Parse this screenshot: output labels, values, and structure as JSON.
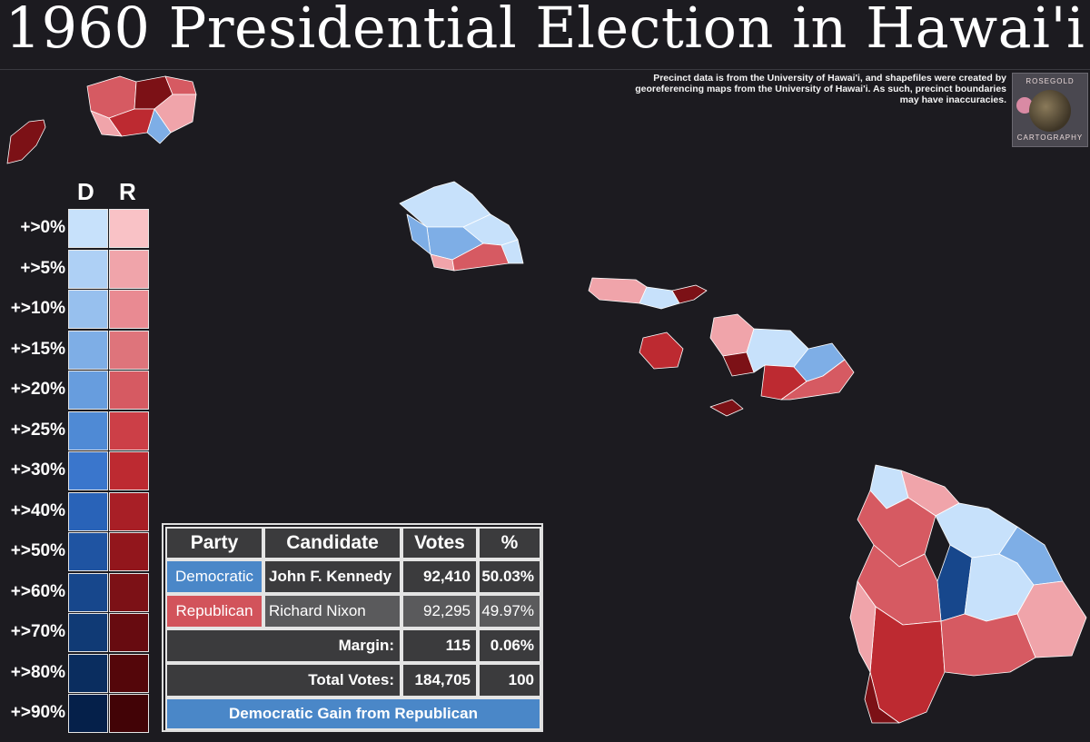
{
  "title": "1960 Presidential Election in Hawai'i",
  "source_note": "Precinct data is from the University of Hawai'i, and shapefiles were created by georeferencing maps from the University of Hawai'i. As such, precinct boundaries may have inaccuracies.",
  "logo": {
    "top_text": "ROSEGOLD",
    "bottom_text": "CARTOGRAPHY",
    "icon": "globe-icon"
  },
  "legend": {
    "header_d": "D",
    "header_r": "R",
    "rows": [
      {
        "label": "+>0%",
        "d_color": "#c7e1fb",
        "r_color": "#f9c2c6"
      },
      {
        "label": "+>5%",
        "d_color": "#aed0f5",
        "r_color": "#f0a4aa"
      },
      {
        "label": "+>10%",
        "d_color": "#97c0ee",
        "r_color": "#e98a92"
      },
      {
        "label": "+>15%",
        "d_color": "#7eaee6",
        "r_color": "#de747b"
      },
      {
        "label": "+>20%",
        "d_color": "#679dde",
        "r_color": "#d65a62"
      },
      {
        "label": "+>25%",
        "d_color": "#4f8ad5",
        "r_color": "#cc3f47"
      },
      {
        "label": "+>30%",
        "d_color": "#3a76cc",
        "r_color": "#bd2a31"
      },
      {
        "label": "+>40%",
        "d_color": "#2963b8",
        "r_color": "#a81f26"
      },
      {
        "label": "+>50%",
        "d_color": "#1f54a2",
        "r_color": "#92161c"
      },
      {
        "label": "+>60%",
        "d_color": "#17478c",
        "r_color": "#7c1116"
      },
      {
        "label": "+>70%",
        "d_color": "#103a75",
        "r_color": "#670b10"
      },
      {
        "label": "+>80%",
        "d_color": "#0a2d5f",
        "r_color": "#54060a"
      },
      {
        "label": "+>90%",
        "d_color": "#05204a",
        "r_color": "#420306"
      }
    ]
  },
  "results": {
    "headers": {
      "party": "Party",
      "candidate": "Candidate",
      "votes": "Votes",
      "pct": "%"
    },
    "dem": {
      "party": "Democratic",
      "candidate": "John F. Kennedy",
      "votes": "92,410",
      "pct": "50.03%",
      "color": "#4a87c8"
    },
    "rep": {
      "party": "Republican",
      "candidate": "Richard Nixon",
      "votes": "92,295",
      "pct": "49.97%",
      "color": "#d2535b"
    },
    "margin": {
      "label": "Margin:",
      "votes": "115",
      "pct": "0.06%"
    },
    "total": {
      "label": "Total Votes:",
      "votes": "184,705",
      "pct": "100"
    },
    "outcome": "Democratic Gain from Republican"
  },
  "map_colors": {
    "background": "#1c1b20",
    "d_light": "#c7e1fb",
    "d_mid": "#7eaee6",
    "d_dark": "#17478c",
    "r_light": "#f0a4aa",
    "r_mid": "#d65a62",
    "r_strong": "#bd2a31",
    "r_dark": "#7c1116"
  }
}
